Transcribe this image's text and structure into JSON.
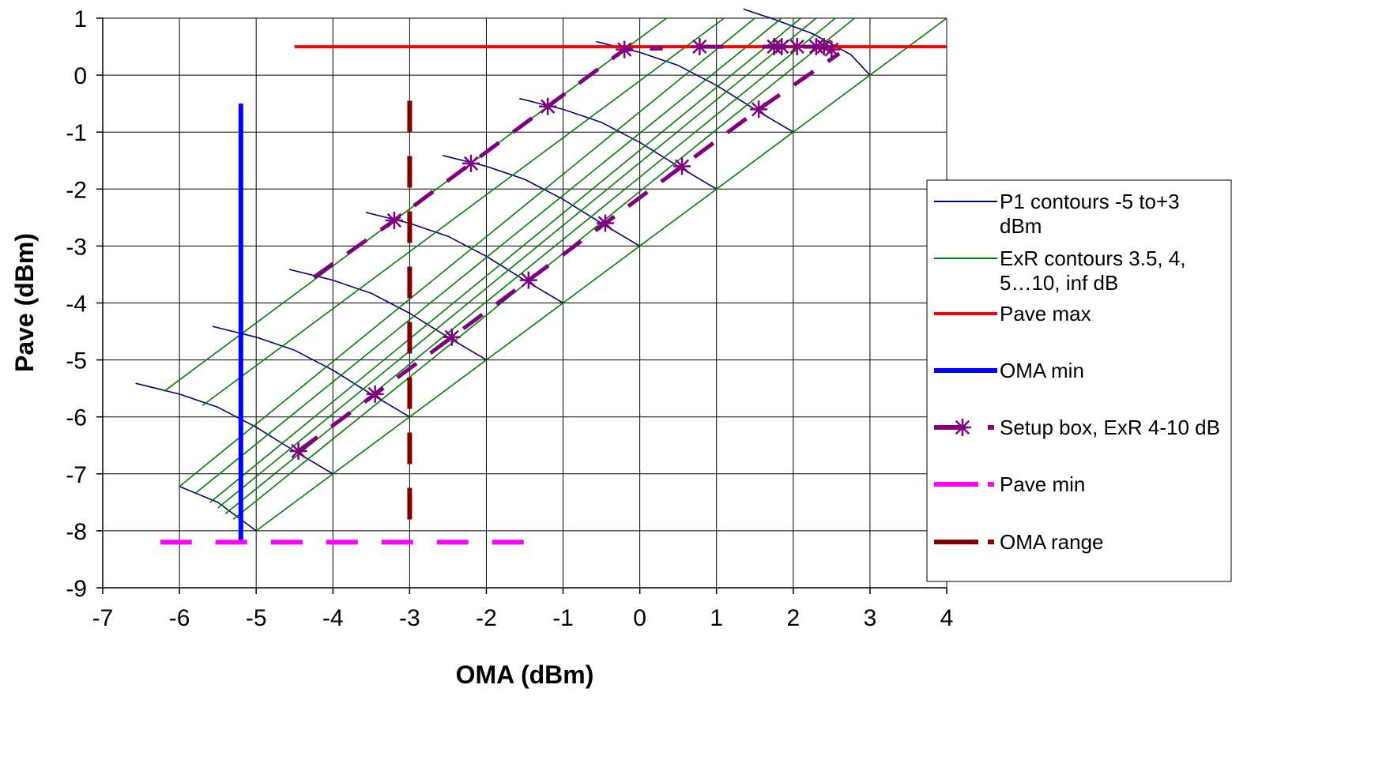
{
  "chart_data": {
    "type": "line",
    "xlabel": "OMA (dBm)",
    "ylabel": "Pave (dBm)",
    "xlim": [
      -7,
      4
    ],
    "ylim": [
      -9,
      1
    ],
    "xticks": [
      -7,
      -6,
      -5,
      -4,
      -3,
      -2,
      -1,
      0,
      1,
      2,
      3,
      4
    ],
    "yticks": [
      1,
      0,
      -1,
      -2,
      -3,
      -4,
      -5,
      -6,
      -7,
      -8,
      -9
    ],
    "grid": true,
    "legend_position": "right",
    "colors": {
      "p1": "#000080",
      "exr": "#008000",
      "pave_max": "#ff0000",
      "oma_min": "#0000ff",
      "setup": "#800080",
      "pave_min": "#ff00ff",
      "oma_range": "#800000"
    },
    "legend": [
      {
        "key": "p1",
        "lines": [
          "P1 contours -5 to+3",
          "dBm"
        ]
      },
      {
        "key": "exr",
        "lines": [
          "ExR contours 3.5, 4,",
          "5…10, inf dB"
        ]
      },
      {
        "key": "pave_max",
        "lines": [
          "Pave max"
        ]
      },
      {
        "key": "oma_min",
        "lines": [
          "OMA min"
        ]
      },
      {
        "key": "setup",
        "lines": [
          "Setup box, ExR 4-10 dB"
        ]
      },
      {
        "key": "pave_min",
        "lines": [
          "Pave min"
        ]
      },
      {
        "key": "oma_range",
        "lines": [
          "OMA range"
        ]
      }
    ],
    "series": [
      {
        "key": "p1",
        "style": "line",
        "segments": [
          [
            [
              -6.57,
              -5.41
            ],
            [
              -6.0,
              -5.6
            ],
            [
              -5.5,
              -5.83
            ],
            [
              -5.0,
              -6.18
            ],
            [
              -4.5,
              -6.6
            ],
            [
              -4.0,
              -7.0
            ]
          ],
          [
            [
              -5.57,
              -4.41
            ],
            [
              -5.0,
              -4.6
            ],
            [
              -4.5,
              -4.83
            ],
            [
              -4.0,
              -5.18
            ],
            [
              -3.5,
              -5.6
            ],
            [
              -3.0,
              -6.0
            ]
          ],
          [
            [
              -4.57,
              -3.41
            ],
            [
              -4.0,
              -3.6
            ],
            [
              -3.5,
              -3.83
            ],
            [
              -3.0,
              -4.18
            ],
            [
              -2.5,
              -4.6
            ],
            [
              -2.0,
              -5.0
            ]
          ],
          [
            [
              -3.57,
              -2.41
            ],
            [
              -3.0,
              -2.6
            ],
            [
              -2.5,
              -2.83
            ],
            [
              -2.0,
              -3.18
            ],
            [
              -1.5,
              -3.6
            ],
            [
              -1.0,
              -4.0
            ]
          ],
          [
            [
              -2.57,
              -1.41
            ],
            [
              -2.0,
              -1.6
            ],
            [
              -1.5,
              -1.83
            ],
            [
              -1.0,
              -2.18
            ],
            [
              -0.5,
              -2.6
            ],
            [
              0.0,
              -3.0
            ]
          ],
          [
            [
              -1.57,
              -0.41
            ],
            [
              -1.0,
              -0.6
            ],
            [
              -0.5,
              -0.83
            ],
            [
              0.0,
              -1.18
            ],
            [
              0.5,
              -1.6
            ],
            [
              1.0,
              -2.0
            ]
          ],
          [
            [
              -0.57,
              0.59
            ],
            [
              0.0,
              0.4
            ],
            [
              0.5,
              0.17
            ],
            [
              1.0,
              -0.18
            ],
            [
              1.5,
              -0.6
            ],
            [
              2.0,
              -1.0
            ]
          ],
          [
            [
              1.35,
              1.16
            ],
            [
              1.75,
              0.98
            ],
            [
              2.25,
              0.73
            ],
            [
              2.75,
              0.36
            ],
            [
              3.0,
              0.0
            ]
          ],
          [
            [
              -6.0,
              -7.22
            ],
            [
              -5.5,
              -7.5
            ],
            [
              -5.0,
              -8.0
            ]
          ]
        ]
      },
      {
        "key": "exr",
        "style": "line",
        "segments": [
          [
            [
              -6.2,
              -5.55
            ],
            [
              0.35,
              1.0
            ]
          ],
          [
            [
              -5.7,
              -5.8
            ],
            [
              1.1,
              1.0
            ]
          ],
          [
            [
              -6.0,
              -7.22
            ],
            [
              1.5,
              1.0
            ]
          ],
          [
            [
              -5.8,
              -7.35
            ],
            [
              1.85,
              1.0
            ]
          ],
          [
            [
              -5.6,
              -7.5
            ],
            [
              2.1,
              1.0
            ]
          ],
          [
            [
              -5.5,
              -7.6
            ],
            [
              2.3,
              1.0
            ]
          ],
          [
            [
              -5.4,
              -7.7
            ],
            [
              2.55,
              1.0
            ]
          ],
          [
            [
              -5.3,
              -7.8
            ],
            [
              2.8,
              1.0
            ]
          ],
          [
            [
              -5.0,
              -8.0
            ],
            [
              4.0,
              1.0
            ]
          ]
        ]
      },
      {
        "key": "pave_max",
        "style": "line",
        "segments": [
          [
            [
              -4.5,
              0.5
            ],
            [
              4.0,
              0.5
            ]
          ]
        ]
      },
      {
        "key": "oma_min",
        "style": "line",
        "segments": [
          [
            [
              -5.2,
              -0.5
            ],
            [
              -5.2,
              -8.2
            ]
          ]
        ]
      },
      {
        "key": "setup",
        "style": "dashed-marker",
        "segments": [
          [
            [
              -4.25,
              -3.55
            ],
            [
              -3.2,
              -2.55
            ],
            [
              -2.2,
              -1.55
            ],
            [
              -1.2,
              -0.55
            ],
            [
              -0.2,
              0.45
            ],
            [
              0.3,
              0.47
            ]
          ],
          [
            [
              0.78,
              0.5
            ],
            [
              1.25,
              0.5
            ]
          ],
          [
            [
              1.6,
              0.5
            ],
            [
              1.8,
              0.5
            ],
            [
              1.85,
              0.5
            ],
            [
              2.1,
              0.5
            ],
            [
              2.3,
              0.5
            ],
            [
              2.4,
              0.5
            ],
            [
              2.5,
              0.45
            ],
            [
              2.6,
              0.38
            ]
          ],
          [
            [
              -4.45,
              -6.6
            ],
            [
              -3.45,
              -5.6
            ],
            [
              -2.45,
              -4.6
            ],
            [
              -1.45,
              -3.6
            ],
            [
              -0.45,
              -2.6
            ],
            [
              0.55,
              -1.6
            ],
            [
              1.55,
              -0.6
            ],
            [
              2.6,
              0.38
            ]
          ]
        ],
        "markers": [
          [
            -3.2,
            -2.55
          ],
          [
            -2.2,
            -1.55
          ],
          [
            -1.2,
            -0.55
          ],
          [
            -0.2,
            0.45
          ],
          [
            0.78,
            0.5
          ],
          [
            1.75,
            0.5
          ],
          [
            1.85,
            0.5
          ],
          [
            2.05,
            0.5
          ],
          [
            2.3,
            0.5
          ],
          [
            2.4,
            0.5
          ],
          [
            2.5,
            0.45
          ],
          [
            -4.45,
            -6.6
          ],
          [
            -3.45,
            -5.6
          ],
          [
            -2.45,
            -4.6
          ],
          [
            -1.45,
            -3.6
          ],
          [
            -0.45,
            -2.6
          ],
          [
            0.55,
            -1.6
          ],
          [
            1.55,
            -0.6
          ]
        ]
      },
      {
        "key": "pave_min",
        "style": "dashed",
        "segments": [
          [
            [
              -6.25,
              -8.2
            ],
            [
              -1.5,
              -8.2
            ]
          ]
        ]
      },
      {
        "key": "oma_range",
        "style": "dashed",
        "segments": [
          [
            [
              -3.0,
              -0.45
            ],
            [
              -3.0,
              -8.2
            ]
          ]
        ]
      }
    ]
  }
}
